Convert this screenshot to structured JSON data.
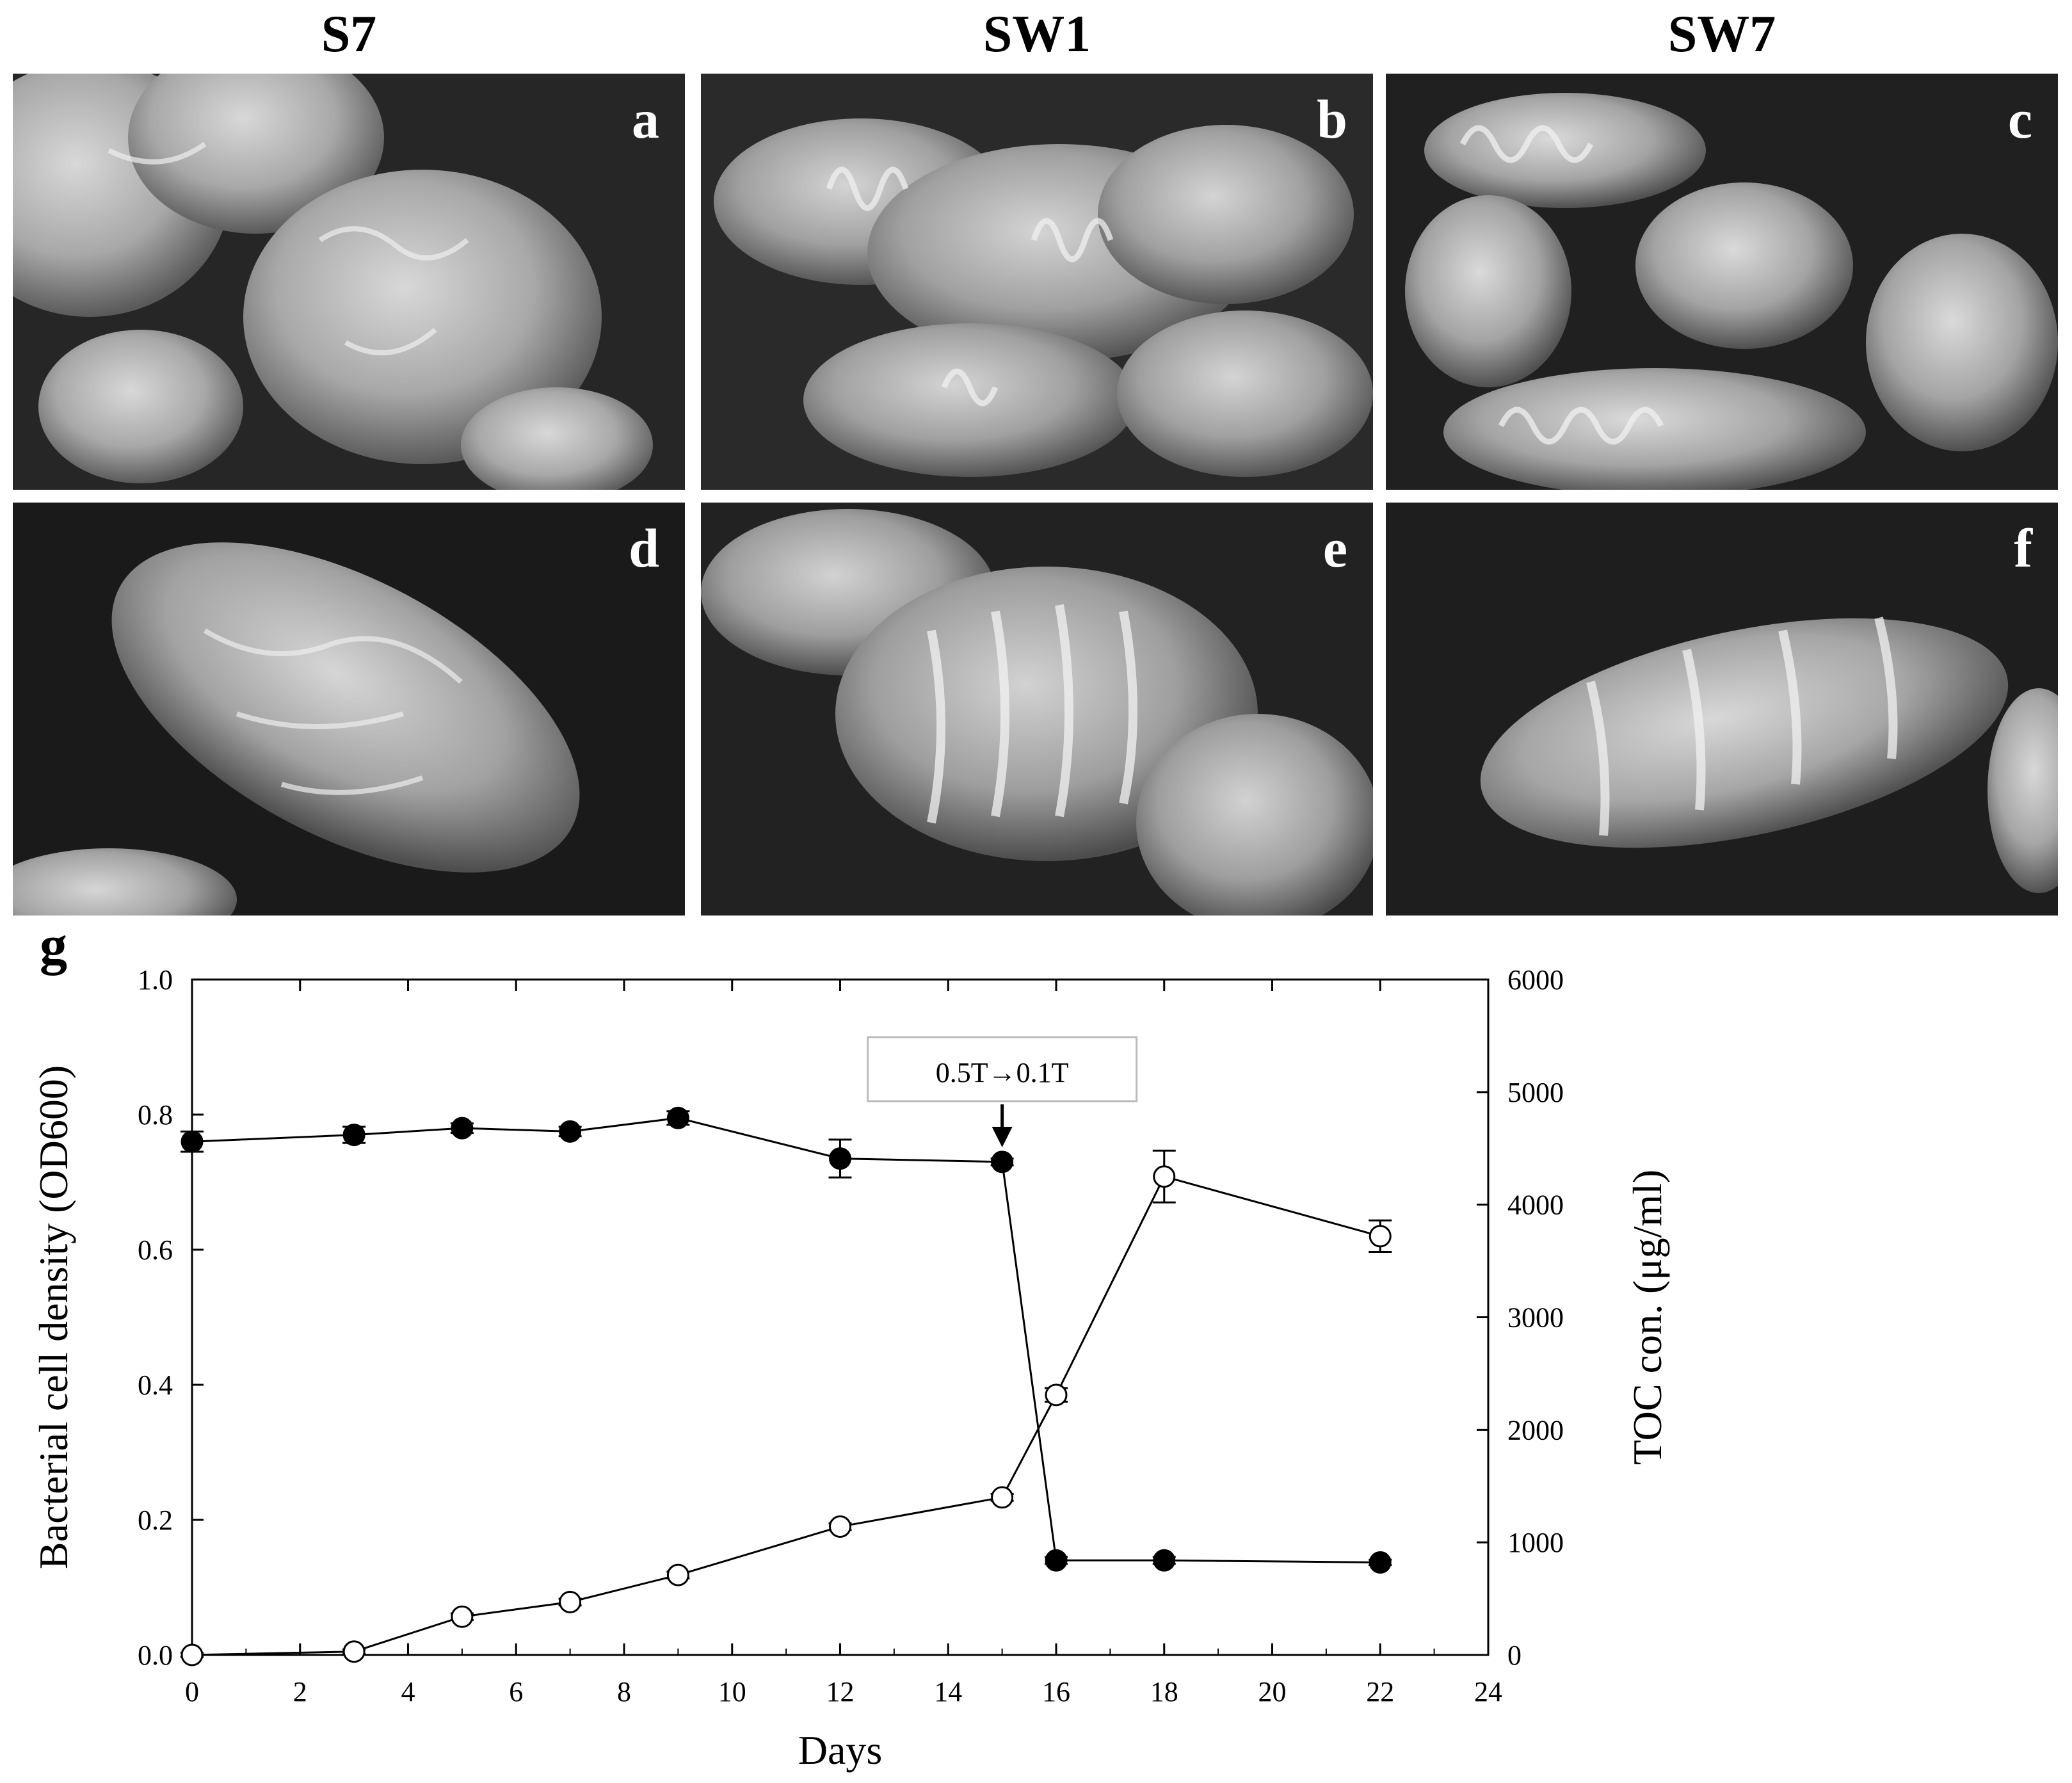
{
  "columns": [
    {
      "label": "S7"
    },
    {
      "label": "SW1"
    },
    {
      "label": "SW7"
    }
  ],
  "panels": [
    {
      "letter": "a",
      "morphology": "aggregated-cells"
    },
    {
      "letter": "b",
      "morphology": "spiral-cells"
    },
    {
      "letter": "c",
      "morphology": "spiral-cells"
    },
    {
      "letter": "d",
      "morphology": "single-cell"
    },
    {
      "letter": "e",
      "morphology": "single-spiral-cell"
    },
    {
      "letter": "f",
      "morphology": "single-spiral-cell"
    }
  ],
  "chart_label": "g",
  "chart_data": {
    "type": "line",
    "xlabel": "Days",
    "ylabel_left": "Bacterial cell density (OD600)",
    "ylabel_right": "TOC con. (μg/ml)",
    "xlim": [
      0,
      24
    ],
    "ylim_left": [
      0,
      1.0
    ],
    "ylim_right": [
      0,
      6000
    ],
    "x_ticks": [
      0,
      2,
      4,
      6,
      8,
      10,
      12,
      14,
      16,
      18,
      20,
      22,
      24
    ],
    "y_left_ticks": [
      "0.0",
      "0.2",
      "0.4",
      "0.6",
      "0.8",
      "1.0"
    ],
    "y_right_ticks": [
      "0",
      "1000",
      "2000",
      "3000",
      "4000",
      "5000",
      "6000"
    ],
    "annotation": {
      "text": "0.5T→0.1T",
      "x": 15
    },
    "series": [
      {
        "axis": "left",
        "marker": "filled-circle",
        "x": [
          0,
          3,
          5,
          7,
          9,
          12,
          15,
          16,
          18,
          22
        ],
        "y": [
          0.76,
          0.77,
          0.78,
          0.775,
          0.795,
          0.735,
          0.73,
          0.14,
          0.14,
          0.137
        ],
        "err": [
          0.015,
          0.012,
          0.007,
          0.007,
          0.01,
          0.028,
          0.005,
          0.005,
          0.005,
          0.004
        ]
      },
      {
        "axis": "right",
        "marker": "open-circle",
        "x": [
          0,
          3,
          5,
          7,
          9,
          12,
          15,
          16,
          18,
          22
        ],
        "y": [
          0,
          30,
          340,
          470,
          710,
          1140,
          1400,
          2310,
          4250,
          3720
        ],
        "err": [
          20,
          20,
          30,
          30,
          30,
          30,
          30,
          60,
          230,
          140
        ]
      }
    ]
  }
}
